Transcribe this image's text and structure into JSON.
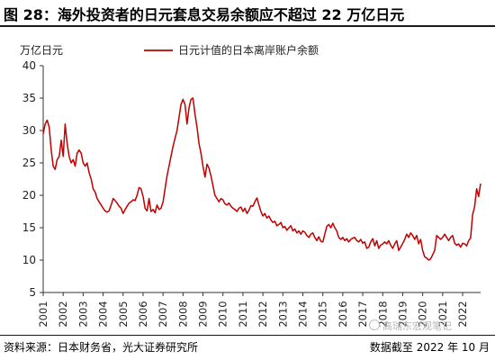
{
  "header": {
    "title": "图 28：海外投资者的日元套息交易余额应不超过 22 万亿日元"
  },
  "footer": {
    "source": "资料来源：日本财务省，光大证券研究所",
    "as_of": "数据截至 2022 年 10 月"
  },
  "watermark": {
    "text": "高瑞东宏观笔记",
    "icon": "circle-logo-icon"
  },
  "chart_data": {
    "type": "line",
    "ylabel": "万亿日元",
    "ylim": [
      5,
      40
    ],
    "yticks": [
      5,
      10,
      15,
      20,
      25,
      30,
      35,
      40
    ],
    "xlim": [
      2001.0,
      2022.9
    ],
    "xticks": [
      "2001",
      "2002",
      "2003",
      "2004",
      "2005",
      "2006",
      "2007",
      "2008",
      "2009",
      "2010",
      "2011",
      "2012",
      "2013",
      "2014",
      "2015",
      "2016",
      "2017",
      "2018",
      "2019",
      "2020",
      "2021",
      "2022"
    ],
    "legend_position": "top",
    "grid": false,
    "series": [
      {
        "name": "日元计值的日本离岸账户余额",
        "color": "#c00000",
        "points": [
          [
            2001.0,
            29.5
          ],
          [
            2001.1,
            31.0
          ],
          [
            2001.2,
            31.6
          ],
          [
            2001.3,
            30.5
          ],
          [
            2001.4,
            27.0
          ],
          [
            2001.5,
            24.5
          ],
          [
            2001.6,
            24.0
          ],
          [
            2001.7,
            25.5
          ],
          [
            2001.8,
            26.0
          ],
          [
            2001.9,
            28.5
          ],
          [
            2002.0,
            26.0
          ],
          [
            2002.1,
            31.0
          ],
          [
            2002.2,
            28.0
          ],
          [
            2002.3,
            26.0
          ],
          [
            2002.4,
            25.0
          ],
          [
            2002.5,
            25.5
          ],
          [
            2002.6,
            24.5
          ],
          [
            2002.7,
            26.5
          ],
          [
            2002.8,
            27.0
          ],
          [
            2002.9,
            26.5
          ],
          [
            2003.0,
            25.0
          ],
          [
            2003.1,
            24.5
          ],
          [
            2003.2,
            25.0
          ],
          [
            2003.3,
            23.5
          ],
          [
            2003.4,
            22.5
          ],
          [
            2003.5,
            21.0
          ],
          [
            2003.6,
            20.5
          ],
          [
            2003.7,
            19.5
          ],
          [
            2003.8,
            19.0
          ],
          [
            2003.9,
            18.5
          ],
          [
            2004.0,
            18.0
          ],
          [
            2004.1,
            17.6
          ],
          [
            2004.2,
            17.4
          ],
          [
            2004.3,
            17.6
          ],
          [
            2004.4,
            18.5
          ],
          [
            2004.5,
            19.5
          ],
          [
            2004.6,
            19.2
          ],
          [
            2004.7,
            18.8
          ],
          [
            2004.8,
            18.3
          ],
          [
            2004.9,
            18.0
          ],
          [
            2005.0,
            17.2
          ],
          [
            2005.1,
            17.8
          ],
          [
            2005.2,
            18.3
          ],
          [
            2005.3,
            18.8
          ],
          [
            2005.4,
            19.0
          ],
          [
            2005.5,
            19.3
          ],
          [
            2005.6,
            19.2
          ],
          [
            2005.7,
            20.0
          ],
          [
            2005.8,
            21.2
          ],
          [
            2005.9,
            21.0
          ],
          [
            2006.0,
            19.8
          ],
          [
            2006.1,
            18.0
          ],
          [
            2006.2,
            17.6
          ],
          [
            2006.3,
            19.5
          ],
          [
            2006.4,
            17.5
          ],
          [
            2006.5,
            17.8
          ],
          [
            2006.6,
            17.3
          ],
          [
            2006.7,
            18.5
          ],
          [
            2006.8,
            17.8
          ],
          [
            2006.9,
            18.0
          ],
          [
            2007.0,
            19.0
          ],
          [
            2007.1,
            21.0
          ],
          [
            2007.2,
            23.0
          ],
          [
            2007.3,
            24.5
          ],
          [
            2007.4,
            26.0
          ],
          [
            2007.5,
            27.5
          ],
          [
            2007.6,
            28.8
          ],
          [
            2007.7,
            30.0
          ],
          [
            2007.8,
            32.0
          ],
          [
            2007.9,
            34.0
          ],
          [
            2008.0,
            34.8
          ],
          [
            2008.1,
            34.0
          ],
          [
            2008.2,
            31.0
          ],
          [
            2008.3,
            33.5
          ],
          [
            2008.4,
            34.8
          ],
          [
            2008.5,
            35.0
          ],
          [
            2008.6,
            32.5
          ],
          [
            2008.7,
            30.5
          ],
          [
            2008.8,
            28.0
          ],
          [
            2008.9,
            26.5
          ],
          [
            2009.0,
            24.5
          ],
          [
            2009.1,
            22.8
          ],
          [
            2009.2,
            24.8
          ],
          [
            2009.3,
            24.2
          ],
          [
            2009.4,
            23.0
          ],
          [
            2009.5,
            21.5
          ],
          [
            2009.6,
            20.0
          ],
          [
            2009.7,
            19.5
          ],
          [
            2009.8,
            19.0
          ],
          [
            2009.9,
            19.5
          ],
          [
            2010.0,
            19.3
          ],
          [
            2010.1,
            18.7
          ],
          [
            2010.2,
            18.5
          ],
          [
            2010.3,
            18.8
          ],
          [
            2010.4,
            18.3
          ],
          [
            2010.5,
            18.0
          ],
          [
            2010.6,
            17.8
          ],
          [
            2010.7,
            17.5
          ],
          [
            2010.8,
            18.0
          ],
          [
            2010.9,
            18.2
          ],
          [
            2011.0,
            17.5
          ],
          [
            2011.1,
            18.0
          ],
          [
            2011.2,
            17.2
          ],
          [
            2011.3,
            17.7
          ],
          [
            2011.4,
            18.4
          ],
          [
            2011.5,
            18.3
          ],
          [
            2011.6,
            19.0
          ],
          [
            2011.7,
            19.6
          ],
          [
            2011.8,
            18.5
          ],
          [
            2011.9,
            17.5
          ],
          [
            2012.0,
            16.8
          ],
          [
            2012.1,
            17.2
          ],
          [
            2012.2,
            16.5
          ],
          [
            2012.3,
            16.8
          ],
          [
            2012.4,
            16.2
          ],
          [
            2012.5,
            15.8
          ],
          [
            2012.6,
            16.0
          ],
          [
            2012.7,
            15.3
          ],
          [
            2012.8,
            15.5
          ],
          [
            2012.9,
            15.8
          ],
          [
            2013.0,
            15.0
          ],
          [
            2013.1,
            15.2
          ],
          [
            2013.2,
            14.6
          ],
          [
            2013.3,
            15.0
          ],
          [
            2013.4,
            15.3
          ],
          [
            2013.5,
            14.5
          ],
          [
            2013.6,
            14.8
          ],
          [
            2013.7,
            14.2
          ],
          [
            2013.8,
            14.5
          ],
          [
            2013.9,
            14.0
          ],
          [
            2014.0,
            14.5
          ],
          [
            2014.1,
            14.3
          ],
          [
            2014.2,
            13.8
          ],
          [
            2014.3,
            13.5
          ],
          [
            2014.4,
            14.0
          ],
          [
            2014.5,
            14.2
          ],
          [
            2014.6,
            13.5
          ],
          [
            2014.7,
            13.0
          ],
          [
            2014.8,
            13.6
          ],
          [
            2014.9,
            12.9
          ],
          [
            2015.0,
            12.8
          ],
          [
            2015.1,
            14.0
          ],
          [
            2015.2,
            15.2
          ],
          [
            2015.3,
            15.5
          ],
          [
            2015.4,
            15.0
          ],
          [
            2015.5,
            15.7
          ],
          [
            2015.6,
            15.0
          ],
          [
            2015.7,
            14.5
          ],
          [
            2015.8,
            13.5
          ],
          [
            2015.9,
            13.2
          ],
          [
            2016.0,
            13.5
          ],
          [
            2016.1,
            13.0
          ],
          [
            2016.2,
            13.3
          ],
          [
            2016.3,
            12.8
          ],
          [
            2016.4,
            13.2
          ],
          [
            2016.5,
            13.4
          ],
          [
            2016.6,
            13.5
          ],
          [
            2016.7,
            13.0
          ],
          [
            2016.8,
            12.8
          ],
          [
            2016.9,
            13.2
          ],
          [
            2017.0,
            12.6
          ],
          [
            2017.1,
            12.8
          ],
          [
            2017.2,
            11.8
          ],
          [
            2017.3,
            12.0
          ],
          [
            2017.4,
            12.8
          ],
          [
            2017.5,
            13.3
          ],
          [
            2017.6,
            12.2
          ],
          [
            2017.7,
            13.0
          ],
          [
            2017.8,
            11.8
          ],
          [
            2017.9,
            12.3
          ],
          [
            2018.0,
            12.5
          ],
          [
            2018.1,
            12.8
          ],
          [
            2018.2,
            12.5
          ],
          [
            2018.3,
            13.0
          ],
          [
            2018.4,
            12.3
          ],
          [
            2018.5,
            11.8
          ],
          [
            2018.6,
            12.5
          ],
          [
            2018.7,
            13.0
          ],
          [
            2018.8,
            11.5
          ],
          [
            2018.9,
            12.0
          ],
          [
            2019.0,
            12.6
          ],
          [
            2019.1,
            13.2
          ],
          [
            2019.2,
            14.0
          ],
          [
            2019.3,
            13.5
          ],
          [
            2019.4,
            14.2
          ],
          [
            2019.5,
            13.8
          ],
          [
            2019.6,
            13.2
          ],
          [
            2019.7,
            13.8
          ],
          [
            2019.8,
            12.5
          ],
          [
            2019.9,
            13.2
          ],
          [
            2020.0,
            11.5
          ],
          [
            2020.1,
            10.5
          ],
          [
            2020.2,
            10.3
          ],
          [
            2020.3,
            10.0
          ],
          [
            2020.4,
            10.2
          ],
          [
            2020.5,
            10.8
          ],
          [
            2020.6,
            11.5
          ],
          [
            2020.7,
            13.8
          ],
          [
            2020.8,
            13.5
          ],
          [
            2020.9,
            13.2
          ],
          [
            2021.0,
            13.5
          ],
          [
            2021.1,
            14.0
          ],
          [
            2021.2,
            13.5
          ],
          [
            2021.3,
            13.0
          ],
          [
            2021.4,
            13.5
          ],
          [
            2021.5,
            13.8
          ],
          [
            2021.6,
            12.6
          ],
          [
            2021.7,
            12.3
          ],
          [
            2021.8,
            12.5
          ],
          [
            2021.9,
            12.0
          ],
          [
            2022.0,
            12.6
          ],
          [
            2022.1,
            12.5
          ],
          [
            2022.2,
            12.2
          ],
          [
            2022.3,
            13.0
          ],
          [
            2022.4,
            13.4
          ],
          [
            2022.5,
            17.0
          ],
          [
            2022.6,
            18.2
          ],
          [
            2022.7,
            21.0
          ],
          [
            2022.8,
            19.8
          ],
          [
            2022.9,
            21.8
          ]
        ]
      }
    ]
  }
}
